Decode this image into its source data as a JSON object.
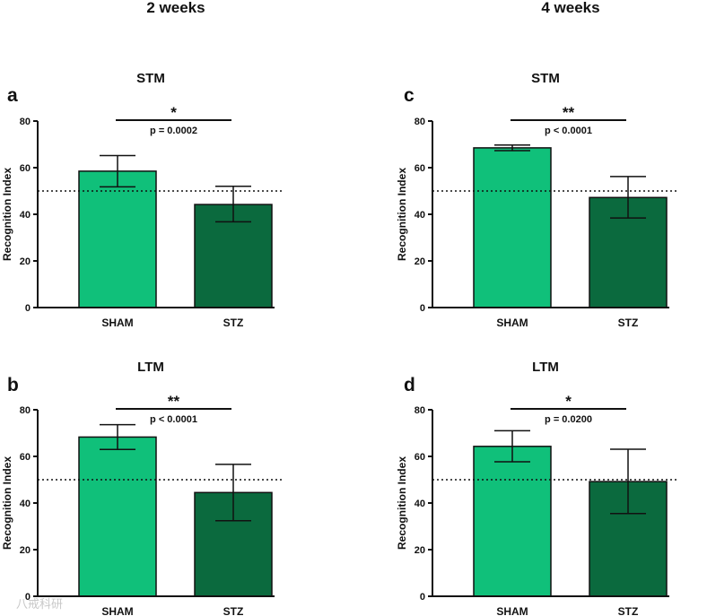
{
  "columns": [
    "2 weeks",
    "4 weeks"
  ],
  "watermark": "八戒科研",
  "colors": {
    "SHAM": "#10c07a",
    "STZ": "#0b6a3e",
    "axis": "#111111"
  },
  "chart_data": [
    {
      "id": "a",
      "letter": "a",
      "title": "STM",
      "column": "2 weeks",
      "type": "bar",
      "categories": [
        "SHAM",
        "STZ"
      ],
      "values": [
        58.5,
        44.2
      ],
      "errors": [
        [
          51.8,
          65.2
        ],
        [
          36.8,
          52.0
        ]
      ],
      "ylabel": "Recognition Index",
      "ylim": [
        0,
        80
      ],
      "yticks": [
        0,
        20,
        40,
        60,
        80
      ],
      "chance_level": 50,
      "significance": {
        "stars": "*",
        "p": "p = 0.0002"
      }
    },
    {
      "id": "b",
      "letter": "b",
      "title": "LTM",
      "column": "2 weeks",
      "type": "bar",
      "categories": [
        "SHAM",
        "STZ"
      ],
      "values": [
        68.3,
        44.5
      ],
      "errors": [
        [
          63.0,
          73.6
        ],
        [
          32.4,
          56.6
        ]
      ],
      "ylabel": "Recognition Index",
      "ylim": [
        0,
        80
      ],
      "yticks": [
        0,
        20,
        40,
        60,
        80
      ],
      "chance_level": 50,
      "significance": {
        "stars": "**",
        "p": "p < 0.0001"
      }
    },
    {
      "id": "c",
      "letter": "c",
      "title": "STM",
      "column": "4 weeks",
      "type": "bar",
      "categories": [
        "SHAM",
        "STZ"
      ],
      "values": [
        68.5,
        47.2
      ],
      "errors": [
        [
          67.3,
          69.7
        ],
        [
          38.4,
          56.2
        ]
      ],
      "ylabel": "Recognition Index",
      "ylim": [
        0,
        80
      ],
      "yticks": [
        0,
        20,
        40,
        60,
        80
      ],
      "chance_level": 50,
      "significance": {
        "stars": "**",
        "p": "p < 0.0001"
      }
    },
    {
      "id": "d",
      "letter": "d",
      "title": "LTM",
      "column": "4 weeks",
      "type": "bar",
      "categories": [
        "SHAM",
        "STZ"
      ],
      "values": [
        64.3,
        49.2
      ],
      "errors": [
        [
          57.7,
          71.0
        ],
        [
          35.5,
          63.1
        ]
      ],
      "ylabel": "Recognition Index",
      "ylim": [
        0,
        80
      ],
      "yticks": [
        0,
        20,
        40,
        60,
        80
      ],
      "chance_level": 50,
      "significance": {
        "stars": "*",
        "p": "p = 0.0200"
      }
    }
  ]
}
